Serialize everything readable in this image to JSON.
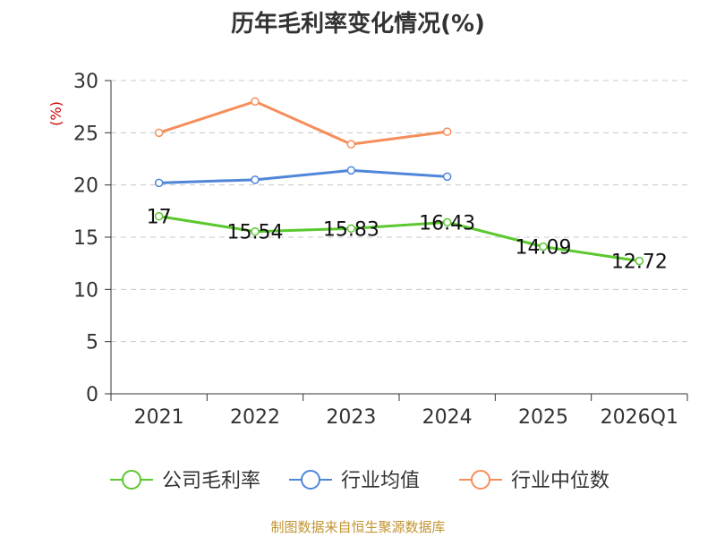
{
  "chart_data": {
    "type": "line",
    "title": "历年毛利率变化情况(%)",
    "ylabel": "(%)",
    "xlabel": "",
    "categories": [
      "2021",
      "2022",
      "2023",
      "2024",
      "2025",
      "2026Q1"
    ],
    "ylim": [
      0,
      30
    ],
    "yticks": [
      0,
      5,
      10,
      15,
      20,
      25,
      30
    ],
    "grid": true,
    "legend_position": "bottom",
    "series": [
      {
        "name": "公司毛利率",
        "color": "#5ac82e",
        "values": [
          17,
          15.54,
          15.83,
          16.43,
          14.09,
          12.72
        ],
        "labels": [
          "17",
          "15.54",
          "15.83",
          "16.43",
          "14.09",
          "12.72"
        ]
      },
      {
        "name": "行业均值",
        "color": "#4f86d9",
        "values": [
          20.2,
          20.5,
          21.4,
          20.8,
          null,
          null
        ]
      },
      {
        "name": "行业中位数",
        "color": "#f68e5a",
        "values": [
          25.0,
          28.0,
          23.9,
          25.1,
          null,
          null
        ]
      }
    ]
  },
  "source": "制图数据来自恒生聚源数据库"
}
